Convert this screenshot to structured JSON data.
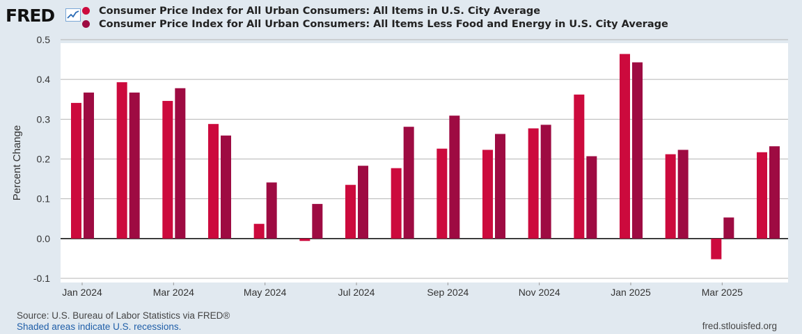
{
  "header": {
    "logo_text": "FRED",
    "logo_icon": "trend-line-icon"
  },
  "legend": [
    {
      "label": "Consumer Price Index for All Urban Consumers: All Items in U.S. City Average",
      "color": "#cc0a3d"
    },
    {
      "label": "Consumer Price Index for All Urban Consumers: All Items Less Food and Energy in U.S. City Average",
      "color": "#9e0b42"
    }
  ],
  "chart_data": {
    "type": "bar",
    "ylabel": "Percent Change",
    "xlabel": "",
    "ylim": [
      -0.1,
      0.5
    ],
    "yticks": [
      0.5,
      0.4,
      0.3,
      0.2,
      0.1,
      0.0,
      -0.1
    ],
    "ytick_labels": [
      "0.5",
      "0.4",
      "0.3",
      "0.2",
      "0.1",
      "0.0",
      "-0.1"
    ],
    "categories": [
      "2024-01",
      "2024-02",
      "2024-03",
      "2024-04",
      "2024-05",
      "2024-06",
      "2024-07",
      "2024-08",
      "2024-09",
      "2024-10",
      "2024-11",
      "2024-12",
      "2025-01",
      "2025-02",
      "2025-03",
      "2025-04"
    ],
    "xtick_labels": [
      {
        "index": 0,
        "label": "Jan 2024"
      },
      {
        "index": 2,
        "label": "Mar 2024"
      },
      {
        "index": 4,
        "label": "May 2024"
      },
      {
        "index": 6,
        "label": "Jul 2024"
      },
      {
        "index": 8,
        "label": "Sep 2024"
      },
      {
        "index": 10,
        "label": "Nov 2024"
      },
      {
        "index": 12,
        "label": "Jan 2025"
      },
      {
        "index": 14,
        "label": "Mar 2025"
      }
    ],
    "series": [
      {
        "name": "Consumer Price Index for All Urban Consumers: All Items in U.S. City Average",
        "color": "#cc0a3d",
        "values": [
          0.341,
          0.393,
          0.346,
          0.288,
          0.037,
          -0.006,
          0.135,
          0.177,
          0.226,
          0.223,
          0.277,
          0.362,
          0.464,
          0.212,
          -0.052,
          0.217
        ]
      },
      {
        "name": "Consumer Price Index for All Urban Consumers: All Items Less Food and Energy in U.S. City Average",
        "color": "#9e0b42",
        "values": [
          0.367,
          0.367,
          0.378,
          0.259,
          0.141,
          0.087,
          0.183,
          0.281,
          0.309,
          0.263,
          0.286,
          0.207,
          0.443,
          0.223,
          0.053,
          0.232
        ]
      }
    ],
    "grid": true
  },
  "footer": {
    "source": "Source: U.S. Bureau of Labor Statistics via FRED®",
    "shaded": "Shaded areas indicate U.S. recessions.",
    "url": "fred.stlouisfed.org"
  }
}
